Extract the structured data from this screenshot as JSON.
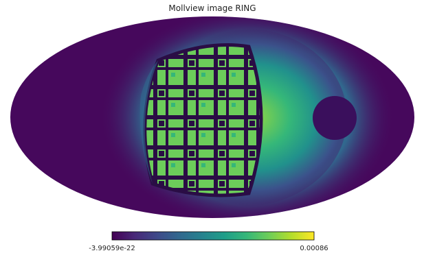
{
  "chart_data": {
    "type": "image",
    "title": "Mollview image RING",
    "colormap": "viridis",
    "clim": [
      -3.99059e-22,
      0.00086
    ]
  }
}
